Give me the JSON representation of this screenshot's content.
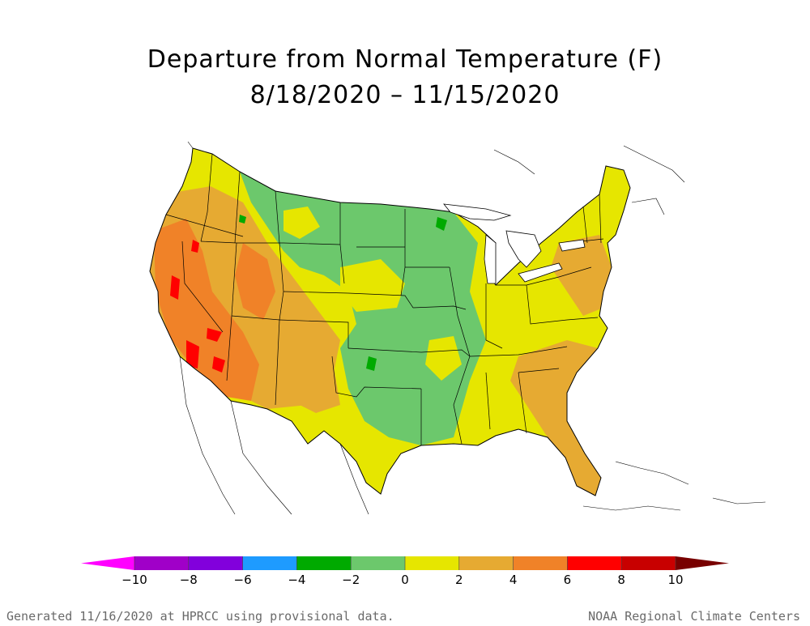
{
  "title_line1": "Departure from Normal Temperature (F)",
  "title_line2": "8/18/2020 – 11/15/2020",
  "footer_left": "Generated 11/16/2020 at HPRCC using provisional data.",
  "footer_right": "NOAA Regional Climate Centers",
  "legend": {
    "bins": [
      {
        "color": "#ff00ff"
      },
      {
        "color": "#a000c8"
      },
      {
        "color": "#8200dc"
      },
      {
        "color": "#1e9bff"
      },
      {
        "color": "#00aa00"
      },
      {
        "color": "#6cc86c"
      },
      {
        "color": "#e6e600"
      },
      {
        "color": "#e6aa32"
      },
      {
        "color": "#f08228"
      },
      {
        "color": "#ff0000"
      },
      {
        "color": "#c80000"
      },
      {
        "color": "#780000"
      }
    ],
    "ticks": [
      "−10",
      "−8",
      "−6",
      "−4",
      "−2",
      "0",
      "2",
      "4",
      "6",
      "8",
      "10"
    ]
  },
  "map_colors": {
    "water": "#ffffff",
    "border": "#000000"
  }
}
